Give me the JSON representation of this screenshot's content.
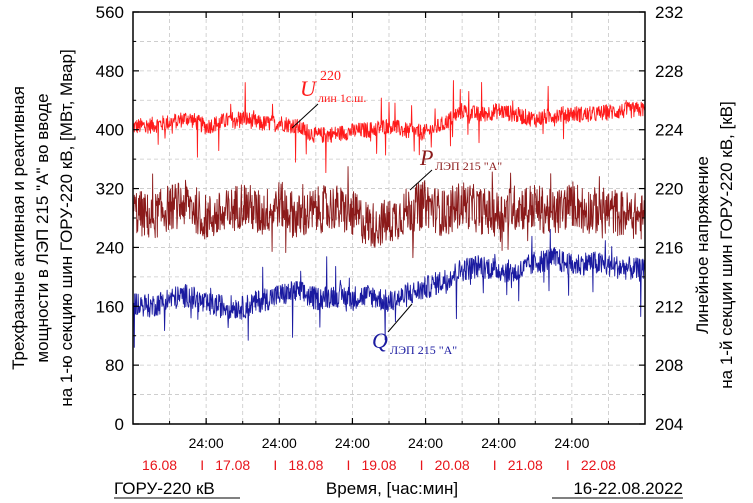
{
  "chart_data": {
    "type": "line",
    "ylabel_left_lines": [
      "Трехфазные активная и реактивная",
      "мощности в ЛЭП 215 \"А\" во вводе",
      "на 1-ю секцию шин ГОРУ-220 кВ, [МВт, Мвар]"
    ],
    "ylabel_right_lines": [
      "Линейное напряжение",
      "на 1-й секции шин ГОРУ-220 кВ, [кВ]"
    ],
    "ylim_left": [
      0,
      560
    ],
    "yticks_left": [
      "0",
      "80",
      "160",
      "240",
      "320",
      "400",
      "480",
      "560"
    ],
    "ylim_right": [
      204,
      232
    ],
    "yticks_right": [
      "204",
      "208",
      "212",
      "216",
      "220",
      "224",
      "228",
      "232"
    ],
    "xlim_hours": [
      0,
      168
    ],
    "x_tick_labels": [
      "24:00",
      "24:00",
      "24:00",
      "24:00",
      "24:00",
      "24:00"
    ],
    "date_labels": [
      "16.08",
      "17.08",
      "18.08",
      "19.08",
      "20.08",
      "21.08",
      "22.08"
    ],
    "date_separator": "I",
    "xlabel": "Время, [час:мин]",
    "footer_left": "ГОРУ-220 кВ",
    "footer_right": "16-22.08.2022",
    "grid": true,
    "series": [
      {
        "name": "U лин 1с.ш. 220",
        "annotation_main": "U",
        "annotation_sub": "лин 1с.ш.",
        "annotation_sup": "220",
        "axis": "right",
        "color": "#ff1a1a",
        "unit": "кВ",
        "x_hours": [
          0,
          6,
          12,
          18,
          24,
          30,
          36,
          42,
          48,
          54,
          60,
          66,
          72,
          78,
          84,
          90,
          96,
          102,
          108,
          114,
          120,
          126,
          132,
          138,
          144,
          150,
          156,
          162,
          168
        ],
        "values": [
          224.2,
          224.3,
          224.5,
          224.8,
          224.2,
          224.6,
          224.8,
          224.4,
          224.5,
          224.2,
          223.6,
          223.7,
          223.9,
          224.0,
          224.3,
          223.9,
          223.8,
          224.4,
          225.3,
          225.0,
          225.3,
          225.0,
          224.7,
          225.0,
          225.1,
          225.0,
          225.2,
          225.3,
          225.4
        ]
      },
      {
        "name": "P ЛЭП 215 \"А\"",
        "annotation_main": "P",
        "annotation_sub": "ЛЭП 215 \"А\"",
        "axis": "left",
        "color": "#8b1a1a",
        "unit": "МВт",
        "x_hours": [
          0,
          6,
          12,
          18,
          24,
          30,
          36,
          42,
          48,
          54,
          60,
          66,
          72,
          78,
          84,
          90,
          96,
          102,
          108,
          114,
          120,
          126,
          132,
          138,
          144,
          150,
          156,
          162,
          168
        ],
        "values": [
          290,
          280,
          295,
          300,
          280,
          285,
          300,
          285,
          300,
          280,
          290,
          295,
          285,
          270,
          275,
          290,
          300,
          285,
          300,
          290,
          285,
          295,
          295,
          285,
          300,
          290,
          290,
          285,
          280
        ]
      },
      {
        "name": "Q ЛЭП 215 \"А\"",
        "annotation_main": "Q",
        "annotation_sub": "ЛЭП 215 \"А\"",
        "axis": "left",
        "color": "#1a1aa0",
        "unit": "Мвар",
        "x_hours": [
          0,
          6,
          12,
          18,
          24,
          30,
          36,
          42,
          48,
          54,
          60,
          66,
          72,
          78,
          84,
          90,
          96,
          102,
          108,
          114,
          120,
          126,
          132,
          138,
          144,
          150,
          156,
          162,
          168
        ],
        "values": [
          165,
          160,
          170,
          175,
          162,
          160,
          158,
          168,
          175,
          180,
          170,
          175,
          172,
          175,
          165,
          175,
          185,
          195,
          210,
          215,
          210,
          205,
          220,
          225,
          215,
          220,
          215,
          212,
          208
        ]
      }
    ]
  }
}
